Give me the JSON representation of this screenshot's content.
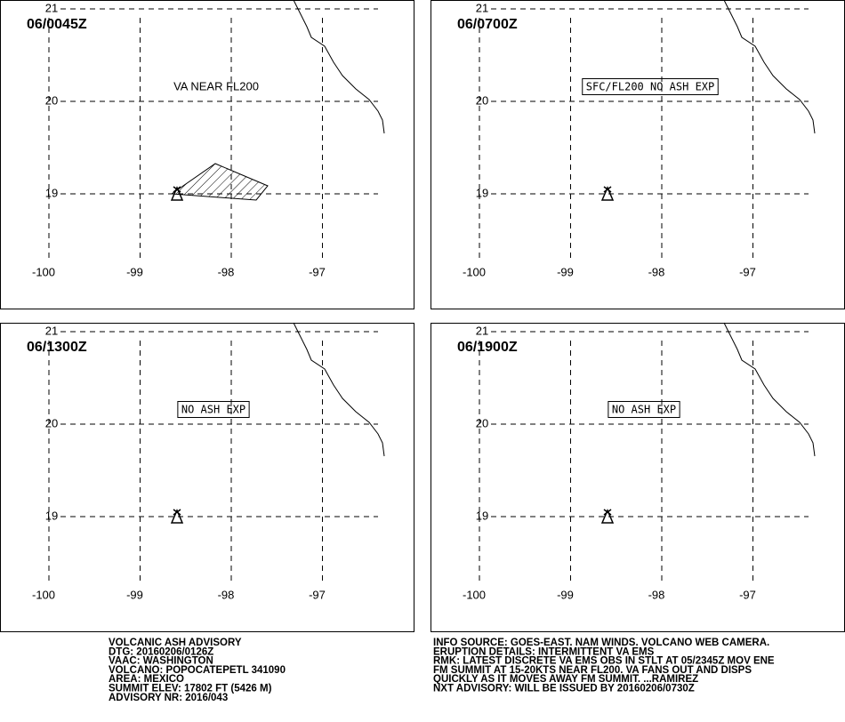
{
  "grid": {
    "lats": [
      21,
      20,
      19
    ],
    "lons": [
      -100,
      -99,
      -98,
      -97
    ]
  },
  "panels": [
    {
      "time": "06/0045Z",
      "note": "VA NEAR FL200"
    },
    {
      "time": "06/0700Z",
      "note": "SFC/FL200 NO ASH EXP"
    },
    {
      "time": "06/1300Z",
      "note": "NO ASH EXP"
    },
    {
      "time": "06/1900Z",
      "note": "NO ASH EXP"
    }
  ],
  "footer": {
    "left": [
      "VOLCANIC ASH ADVISORY",
      "DTG: 20160206/0126Z",
      "VAAC: WASHINGTON",
      "VOLCANO: POPOCATEPETL 341090",
      "AREA: MEXICO",
      "SUMMIT ELEV: 17802 FT (5426 M)",
      "ADVISORY NR: 2016/043"
    ],
    "right": [
      "INFO SOURCE: GOES-EAST. NAM WINDS. VOLCANO WEB CAMERA.",
      "ERUPTION DETAILS: INTERMITTENT VA EMS",
      "RMK: LATEST DISCRETE VA EMS OBS IN STLT AT 05/2345Z MOV ENE",
      "FM SUMMIT AT 15-20KTS NEAR FL200. VA FANS OUT AND DISPS",
      "QUICKLY AS IT MOVES AWAY FM SUMMIT. ...RAMIREZ",
      "NXT ADVISORY: WILL BE ISSUED BY 20160206/0730Z"
    ]
  }
}
